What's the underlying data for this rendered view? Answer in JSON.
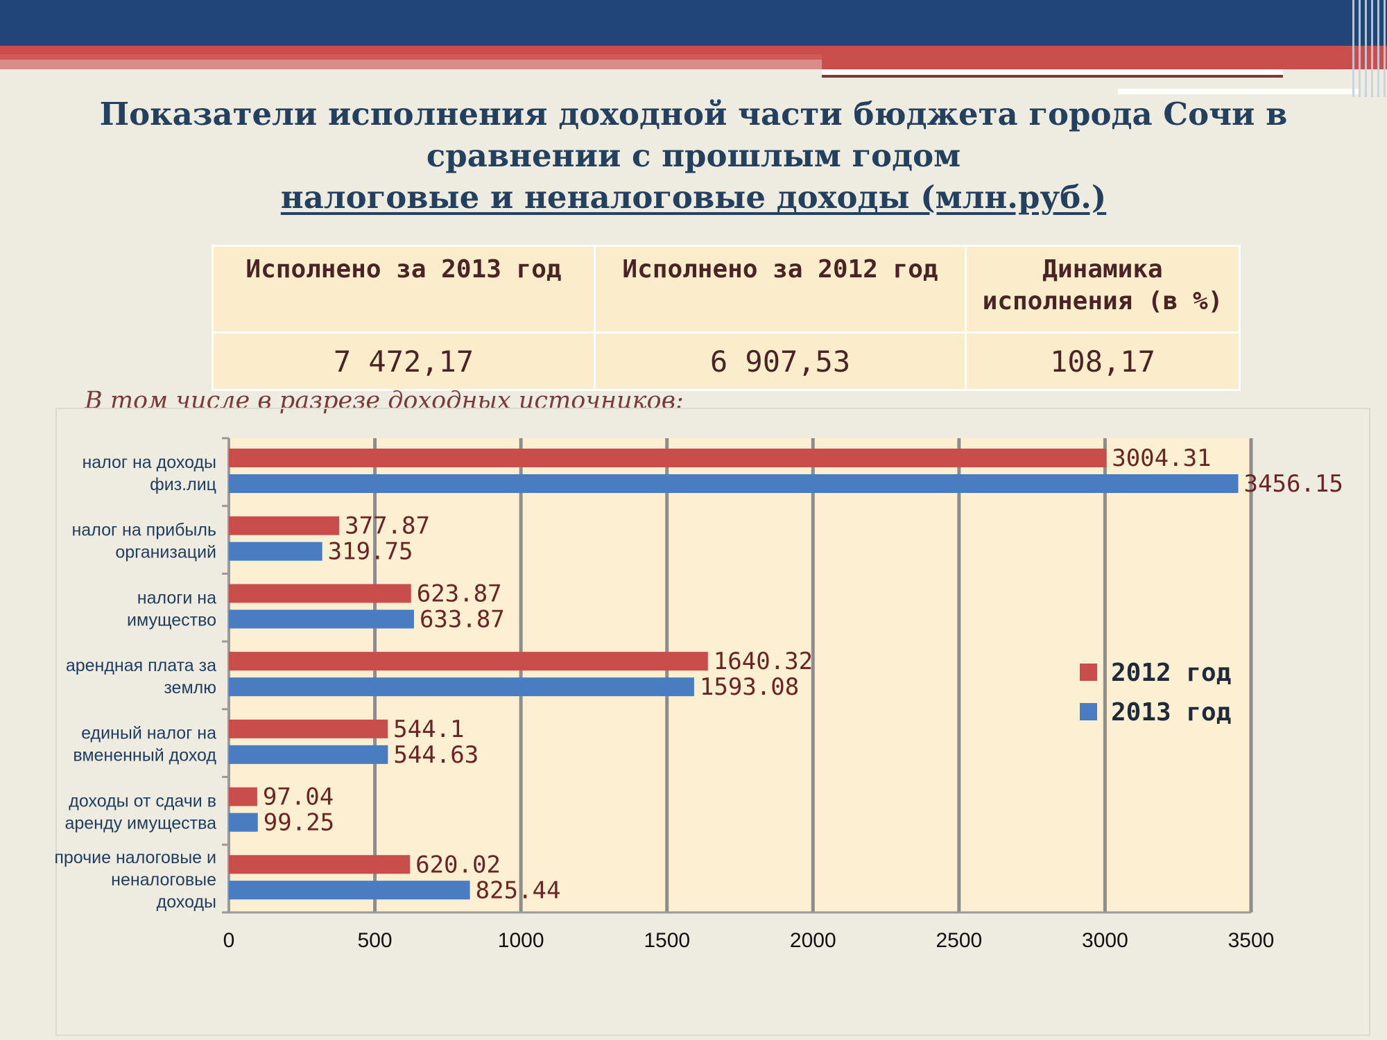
{
  "header": {
    "title_line1": "Показатели исполнения доходной части бюджета города Сочи в",
    "title_line2": "сравнении с прошлым годом",
    "title_line3": "налоговые и неналоговые доходы (млн.руб.)"
  },
  "summary": {
    "headers": [
      "Исполнено за 2013 год",
      "Исполнено за 2012 год",
      "Динамика исполнения (в %)"
    ],
    "values": [
      "7 472,17",
      "6 907,53",
      "108,17"
    ]
  },
  "subtitle": "В том числе в разрезе доходных источников:",
  "colors": {
    "series_2012": "#c84d4b",
    "series_2013": "#4a7cc1",
    "value_label": "#6b2323",
    "plot_bg": "#fdf0d2",
    "grid": "#8d8d8d"
  },
  "chart_data": {
    "type": "bar",
    "orientation": "horizontal",
    "categories": [
      "налог на доходы физ.лиц",
      "налог на прибыль организаций",
      "налоги на имущество",
      "арендная плата за землю",
      "единый налог на вмененный доход",
      "доходы от сдачи в аренду имущества",
      "прочие налоговые и неналоговые доходы"
    ],
    "category_lines": [
      [
        "налог на доходы",
        "физ.лиц"
      ],
      [
        "налог на прибыль",
        "организаций"
      ],
      [
        "налоги на",
        "имущество"
      ],
      [
        "арендная плата за",
        "землю"
      ],
      [
        "единый налог на",
        "вмененный доход"
      ],
      [
        "доходы от сдачи в",
        "аренду имущества"
      ],
      [
        "прочие налоговые и",
        "неналоговые",
        "доходы"
      ]
    ],
    "series": [
      {
        "name": "2012 год",
        "values": [
          3004.31,
          377.87,
          623.87,
          1640.32,
          544.1,
          97.04,
          620.02
        ],
        "labels": [
          "3004.31",
          "377.87",
          "623.87",
          "1640.32",
          "544.1",
          "97.04",
          "620.02"
        ]
      },
      {
        "name": "2013 год",
        "values": [
          3456.15,
          319.75,
          633.87,
          1593.08,
          544.63,
          99.25,
          825.44
        ],
        "labels": [
          "3456.15",
          "319.75",
          "633.87",
          "1593.08",
          "544.63",
          "99.25",
          "825.44"
        ]
      }
    ],
    "xlim": [
      0,
      3500
    ],
    "xticks": [
      0,
      500,
      1000,
      1500,
      2000,
      2500,
      3000,
      3500
    ],
    "grid": true,
    "legend_position": "right"
  }
}
